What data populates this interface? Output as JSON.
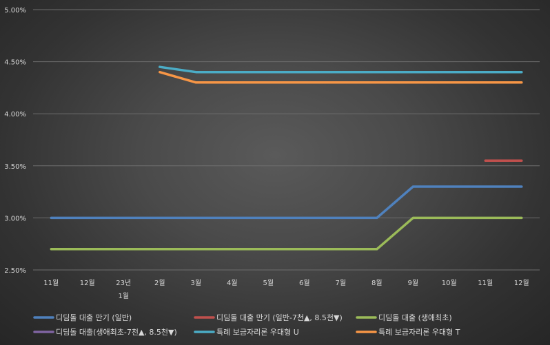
{
  "chart_data": {
    "type": "line",
    "categories": [
      [
        "11월"
      ],
      [
        "12월"
      ],
      [
        "23년",
        "1월"
      ],
      [
        "2월"
      ],
      [
        "3월"
      ],
      [
        "4월"
      ],
      [
        "5월"
      ],
      [
        "6월"
      ],
      [
        "7월"
      ],
      [
        "8월"
      ],
      [
        "9월"
      ],
      [
        "10월"
      ],
      [
        "11월"
      ],
      [
        "12월"
      ]
    ],
    "ylim": [
      0.025,
      0.05
    ],
    "yticks": [
      0.025,
      0.03,
      0.035,
      0.04,
      0.045,
      0.05
    ],
    "ytick_labels": [
      "2.50%",
      "3.00%",
      "3.50%",
      "4.00%",
      "4.50%",
      "5.00%"
    ],
    "grid": true,
    "legend_position": "bottom",
    "series": [
      {
        "name": "디딤돌 대출 만기 (일반)",
        "color": "#4f81bd",
        "values": [
          0.03,
          0.03,
          0.03,
          0.03,
          0.03,
          0.03,
          0.03,
          0.03,
          0.03,
          0.03,
          0.033,
          0.033,
          0.033,
          0.033
        ]
      },
      {
        "name": "디딤돌 대출 만기 (일반-7천▲, 8.5천▼)",
        "color": "#c0504d",
        "values": [
          null,
          null,
          null,
          null,
          null,
          null,
          null,
          null,
          null,
          null,
          null,
          null,
          0.0355,
          0.0355
        ]
      },
      {
        "name": "디딤돌 대출 (생애최초)",
        "color": "#9bbb59",
        "values": [
          0.027,
          0.027,
          0.027,
          0.027,
          0.027,
          0.027,
          0.027,
          0.027,
          0.027,
          0.027,
          0.03,
          0.03,
          0.03,
          0.03
        ]
      },
      {
        "name": "디딤돌 대출(생애최초-7천▲, 8.5천▼)",
        "color": "#8064a2",
        "values": [
          null,
          null,
          null,
          null,
          null,
          null,
          null,
          null,
          null,
          null,
          null,
          null,
          null,
          null
        ]
      },
      {
        "name": "특례 보금자리론 우대형 U",
        "color": "#4bacc6",
        "values": [
          null,
          null,
          null,
          0.0445,
          0.044,
          0.044,
          0.044,
          0.044,
          0.044,
          0.044,
          0.044,
          0.044,
          0.044,
          0.044
        ]
      },
      {
        "name": "특례 보금자리론 우대형 T",
        "color": "#f79646",
        "values": [
          null,
          null,
          null,
          0.044,
          0.043,
          0.043,
          0.043,
          0.043,
          0.043,
          0.043,
          0.043,
          0.043,
          0.043,
          0.043
        ]
      }
    ]
  }
}
